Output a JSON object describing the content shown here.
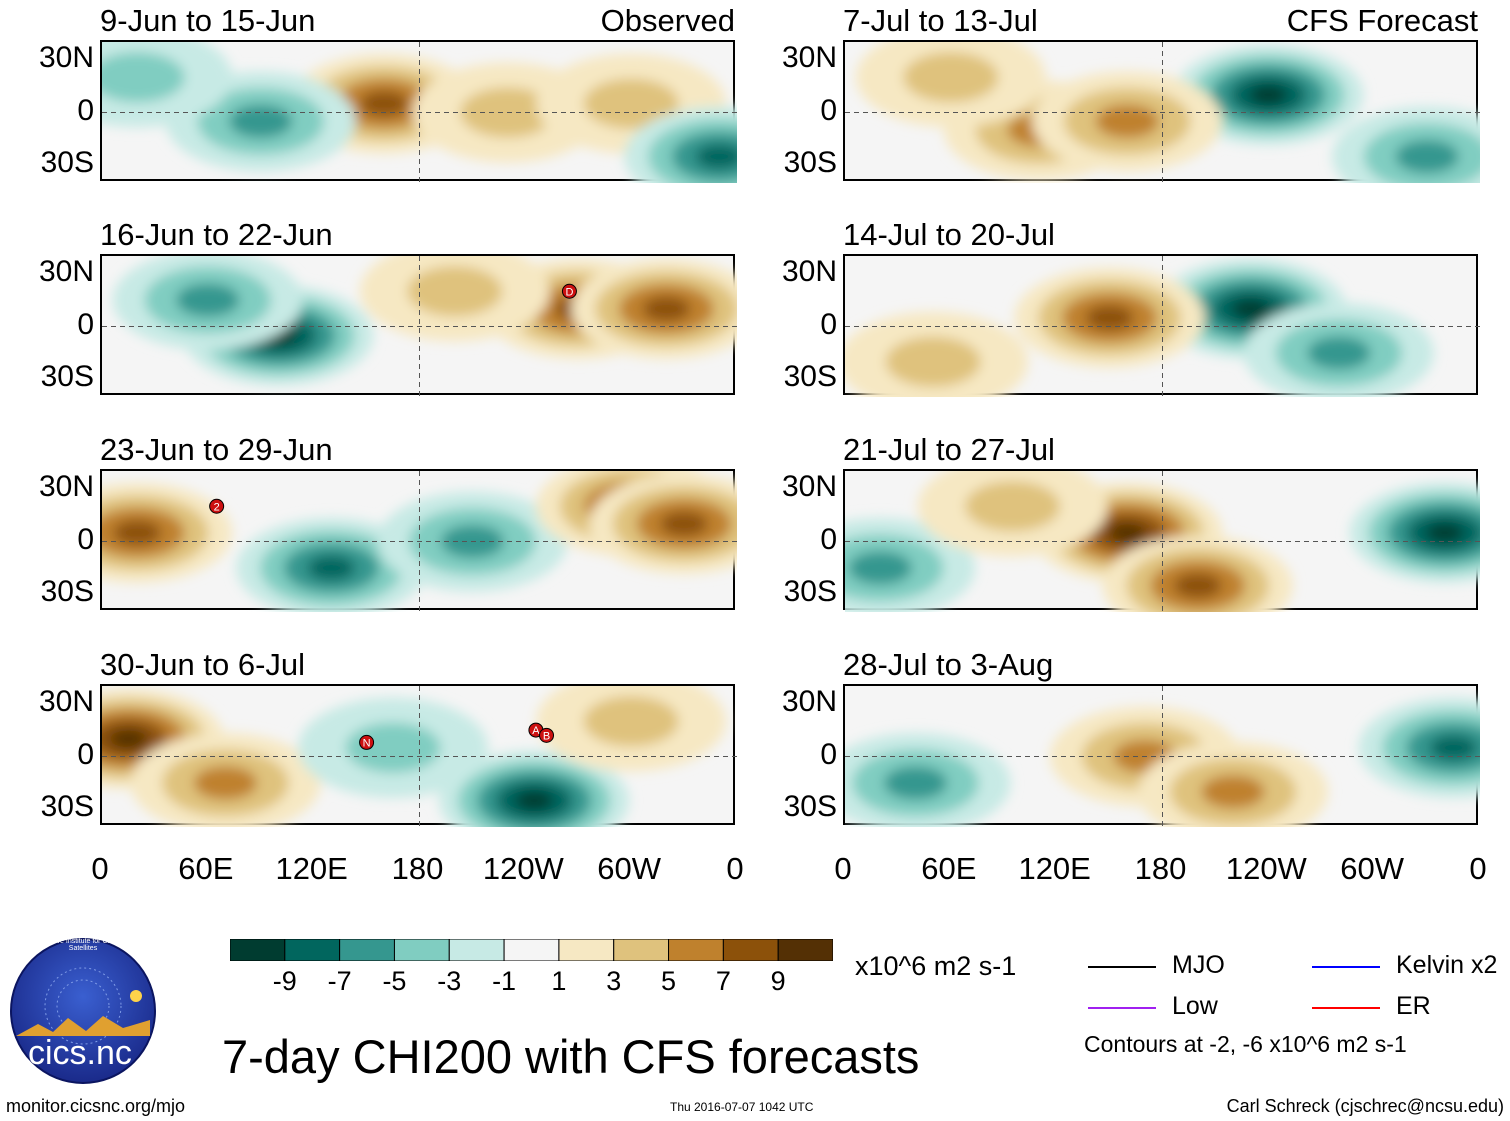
{
  "figure_title": "7-day CHI200 with CFS forecasts",
  "headers": {
    "observed": "Observed",
    "forecast": "CFS Forecast"
  },
  "lat_labels": [
    "30N",
    "0",
    "30S"
  ],
  "lon_labels": [
    "0",
    "60E",
    "120E",
    "180",
    "120W",
    "60W",
    "0"
  ],
  "panels": [
    {
      "title": "9-Jun to 15-Jun",
      "column": "observed",
      "anomalies": [
        {
          "sign": "pos",
          "lon": 160,
          "lat": 5,
          "mag": 7
        },
        {
          "sign": "pos",
          "lon": 230,
          "lat": 0,
          "mag": 3
        },
        {
          "sign": "pos",
          "lon": 300,
          "lat": 5,
          "mag": 3
        },
        {
          "sign": "neg",
          "lon": 90,
          "lat": -5,
          "mag": -5
        },
        {
          "sign": "neg",
          "lon": 350,
          "lat": -25,
          "mag": -7
        },
        {
          "sign": "neg",
          "lon": 20,
          "lat": 20,
          "mag": -3
        }
      ],
      "storms": []
    },
    {
      "title": "16-Jun to 22-Jun",
      "column": "observed",
      "anomalies": [
        {
          "sign": "neg",
          "lon": 100,
          "lat": -5,
          "mag": -9
        },
        {
          "sign": "neg",
          "lon": 60,
          "lat": 15,
          "mag": -5
        },
        {
          "sign": "pos",
          "lon": 270,
          "lat": 10,
          "mag": 7
        },
        {
          "sign": "pos",
          "lon": 320,
          "lat": 10,
          "mag": 7
        },
        {
          "sign": "pos",
          "lon": 200,
          "lat": 20,
          "mag": 3
        }
      ],
      "storms": [
        {
          "label": "D",
          "lon": 265,
          "lat": 20
        }
      ]
    },
    {
      "title": "23-Jun to 29-Jun",
      "column": "observed",
      "anomalies": [
        {
          "sign": "pos",
          "lon": 20,
          "lat": 5,
          "mag": 7
        },
        {
          "sign": "neg",
          "lon": 130,
          "lat": -15,
          "mag": -7
        },
        {
          "sign": "neg",
          "lon": 210,
          "lat": 0,
          "mag": -5
        },
        {
          "sign": "pos",
          "lon": 300,
          "lat": 20,
          "mag": 7
        },
        {
          "sign": "pos",
          "lon": 330,
          "lat": 10,
          "mag": 7
        }
      ],
      "storms": [
        {
          "label": "2",
          "lon": 65,
          "lat": 20
        }
      ]
    },
    {
      "title": "30-Jun to 6-Jul",
      "column": "observed",
      "anomalies": [
        {
          "sign": "pos",
          "lon": 15,
          "lat": 10,
          "mag": 9
        },
        {
          "sign": "pos",
          "lon": 70,
          "lat": -15,
          "mag": 5
        },
        {
          "sign": "neg",
          "lon": 245,
          "lat": -25,
          "mag": -9
        },
        {
          "sign": "pos",
          "lon": 300,
          "lat": 20,
          "mag": 3
        },
        {
          "sign": "neg",
          "lon": 165,
          "lat": 5,
          "mag": -3
        }
      ],
      "storms": [
        {
          "label": "N",
          "lon": 150,
          "lat": 8
        },
        {
          "label": "A",
          "lon": 246,
          "lat": 15
        },
        {
          "label": "B",
          "lon": 252,
          "lat": 12
        }
      ]
    },
    {
      "title": "7-Jul to 13-Jul",
      "column": "forecast",
      "anomalies": [
        {
          "sign": "neg",
          "lon": 240,
          "lat": 10,
          "mag": -9
        },
        {
          "sign": "pos",
          "lon": 110,
          "lat": -10,
          "mag": 5
        },
        {
          "sign": "pos",
          "lon": 160,
          "lat": -5,
          "mag": 5
        },
        {
          "sign": "neg",
          "lon": 330,
          "lat": -25,
          "mag": -5
        },
        {
          "sign": "pos",
          "lon": 60,
          "lat": 20,
          "mag": 3
        }
      ],
      "storms": []
    },
    {
      "title": "14-Jul to 20-Jul",
      "column": "forecast",
      "anomalies": [
        {
          "sign": "neg",
          "lon": 230,
          "lat": 10,
          "mag": -9
        },
        {
          "sign": "pos",
          "lon": 150,
          "lat": 5,
          "mag": 7
        },
        {
          "sign": "neg",
          "lon": 280,
          "lat": -15,
          "mag": -5
        },
        {
          "sign": "pos",
          "lon": 50,
          "lat": -20,
          "mag": 3
        }
      ],
      "storms": []
    },
    {
      "title": "21-Jul to 27-Jul",
      "column": "forecast",
      "anomalies": [
        {
          "sign": "pos",
          "lon": 160,
          "lat": 5,
          "mag": 9
        },
        {
          "sign": "pos",
          "lon": 200,
          "lat": -25,
          "mag": 7
        },
        {
          "sign": "neg",
          "lon": 340,
          "lat": 5,
          "mag": -9
        },
        {
          "sign": "neg",
          "lon": 20,
          "lat": -15,
          "mag": -5
        },
        {
          "sign": "pos",
          "lon": 95,
          "lat": 20,
          "mag": 3
        }
      ],
      "storms": []
    },
    {
      "title": "28-Jul to 3-Aug",
      "column": "forecast",
      "anomalies": [
        {
          "sign": "neg",
          "lon": 40,
          "lat": -15,
          "mag": -5
        },
        {
          "sign": "pos",
          "lon": 170,
          "lat": 0,
          "mag": 5
        },
        {
          "sign": "pos",
          "lon": 220,
          "lat": -20,
          "mag": 5
        },
        {
          "sign": "neg",
          "lon": 345,
          "lat": 5,
          "mag": -7
        }
      ],
      "storms": []
    }
  ],
  "colorbar": {
    "unit_label": "x10^6 m2 s-1",
    "tick_labels": [
      "-9",
      "-7",
      "-5",
      "-3",
      "-1",
      "1",
      "3",
      "5",
      "7",
      "9"
    ],
    "colors": [
      "#003c30",
      "#01665e",
      "#35978f",
      "#80cdc1",
      "#c7eae5",
      "#f5f5f5",
      "#f6e8c3",
      "#dfc27d",
      "#bf812d",
      "#8c510a",
      "#543005"
    ]
  },
  "legend": {
    "items": [
      {
        "label": "MJO",
        "color": "#000000"
      },
      {
        "label": "Kelvin x2",
        "color": "#0000ff"
      },
      {
        "label": "Low",
        "color": "#a020f0"
      },
      {
        "label": "ER",
        "color": "#ff0000"
      }
    ],
    "contours_note": "Contours at -2, -6 x10^6 m2 s-1"
  },
  "logo": {
    "text": "cics.nc",
    "ring_text": "Cooperative Institute for Climate and Satellites"
  },
  "footer": {
    "url": "monitor.cicsnc.org/mjo",
    "timestamp": "Thu 2016-07-07 1042 UTC",
    "credit": "Carl Schreck (cjschrec@ncsu.edu)"
  }
}
